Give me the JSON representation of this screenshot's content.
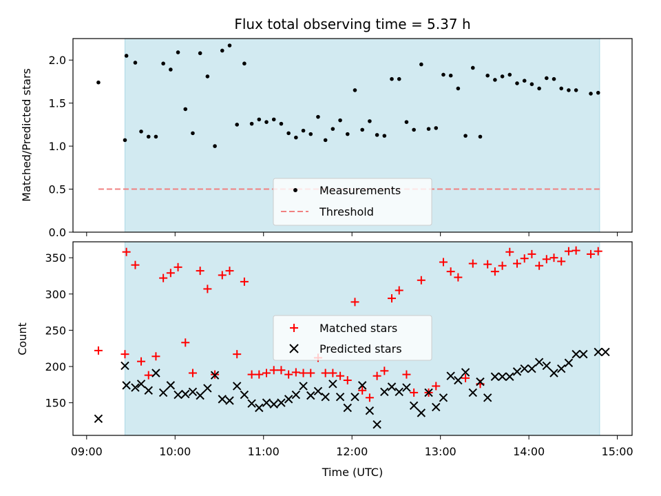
{
  "chart_data": [
    {
      "type": "scatter",
      "title": "Flux total observing time = 5.37 h",
      "ylabel": "Matched/Predicted stars",
      "xlabel": "",
      "ylim": [
        0,
        2.25
      ],
      "yticks": [
        0.0,
        0.5,
        1.0,
        1.5,
        2.0
      ],
      "ytick_labels": [
        "0.0",
        "0.5",
        "1.0",
        "1.5",
        "2.0"
      ],
      "shaded_span": {
        "from": "09:26",
        "to": "14:48",
        "color": "#add8e6"
      },
      "legend": {
        "placement": "lower center",
        "entries": [
          "Measurements",
          "Threshold"
        ]
      },
      "series": [
        {
          "name": "Measurements",
          "color": "#000000",
          "marker": "dot",
          "points": [
            [
              "09:08",
              1.74
            ],
            [
              "09:26",
              1.07
            ],
            [
              "09:27",
              2.05
            ],
            [
              "09:33",
              1.97
            ],
            [
              "09:37",
              1.17
            ],
            [
              "09:42",
              1.11
            ],
            [
              "09:47",
              1.11
            ],
            [
              "09:52",
              1.96
            ],
            [
              "09:57",
              1.89
            ],
            [
              "10:02",
              2.09
            ],
            [
              "10:07",
              1.43
            ],
            [
              "10:12",
              1.15
            ],
            [
              "10:17",
              2.08
            ],
            [
              "10:22",
              1.81
            ],
            [
              "10:27",
              1.0
            ],
            [
              "10:32",
              2.11
            ],
            [
              "10:37",
              2.17
            ],
            [
              "10:42",
              1.25
            ],
            [
              "10:47",
              1.96
            ],
            [
              "10:52",
              1.26
            ],
            [
              "10:57",
              1.31
            ],
            [
              "11:02",
              1.28
            ],
            [
              "11:07",
              1.31
            ],
            [
              "11:12",
              1.26
            ],
            [
              "11:17",
              1.15
            ],
            [
              "11:22",
              1.1
            ],
            [
              "11:27",
              1.18
            ],
            [
              "11:32",
              1.14
            ],
            [
              "11:37",
              1.34
            ],
            [
              "11:42",
              1.07
            ],
            [
              "11:47",
              1.2
            ],
            [
              "11:52",
              1.3
            ],
            [
              "11:57",
              1.14
            ],
            [
              "12:02",
              1.65
            ],
            [
              "12:07",
              1.19
            ],
            [
              "12:12",
              1.29
            ],
            [
              "12:17",
              1.13
            ],
            [
              "12:22",
              1.12
            ],
            [
              "12:27",
              1.78
            ],
            [
              "12:32",
              1.78
            ],
            [
              "12:37",
              1.28
            ],
            [
              "12:42",
              1.19
            ],
            [
              "12:47",
              1.95
            ],
            [
              "12:52",
              1.2
            ],
            [
              "12:57",
              1.21
            ],
            [
              "13:02",
              1.83
            ],
            [
              "13:07",
              1.82
            ],
            [
              "13:12",
              1.67
            ],
            [
              "13:17",
              1.12
            ],
            [
              "13:22",
              1.91
            ],
            [
              "13:27",
              1.11
            ],
            [
              "13:32",
              1.82
            ],
            [
              "13:37",
              1.77
            ],
            [
              "13:42",
              1.81
            ],
            [
              "13:47",
              1.83
            ],
            [
              "13:52",
              1.73
            ],
            [
              "13:57",
              1.76
            ],
            [
              "14:02",
              1.72
            ],
            [
              "14:07",
              1.67
            ],
            [
              "14:12",
              1.79
            ],
            [
              "14:17",
              1.78
            ],
            [
              "14:22",
              1.67
            ],
            [
              "14:27",
              1.65
            ],
            [
              "14:32",
              1.65
            ],
            [
              "14:42",
              1.61
            ],
            [
              "14:47",
              1.62
            ]
          ]
        },
        {
          "name": "Threshold",
          "color": "#f08080",
          "style": "dashed",
          "points": [
            [
              "09:08",
              0.5
            ],
            [
              "14:48",
              0.5
            ]
          ]
        }
      ]
    },
    {
      "type": "scatter",
      "title": "",
      "ylabel": "Count",
      "xlabel": "Time (UTC)",
      "ylim": [
        105,
        372
      ],
      "yticks": [
        150,
        200,
        250,
        300,
        350
      ],
      "ytick_labels": [
        "150",
        "200",
        "250",
        "300",
        "350"
      ],
      "xlim": [
        "09:00",
        "15:00"
      ],
      "xtick_labels": [
        "09:00",
        "10:00",
        "11:00",
        "12:00",
        "13:00",
        "14:00",
        "15:00"
      ],
      "shaded_span": {
        "from": "09:26",
        "to": "14:48",
        "color": "#add8e6"
      },
      "legend": {
        "placement": "center",
        "entries": [
          "Matched stars",
          "Predicted stars"
        ]
      },
      "series": [
        {
          "name": "Matched stars",
          "color": "#ff0000",
          "marker": "plus",
          "points": [
            [
              "09:08",
              222
            ],
            [
              "09:26",
              217
            ],
            [
              "09:27",
              358
            ],
            [
              "09:33",
              340
            ],
            [
              "09:37",
              207
            ],
            [
              "09:42",
              188
            ],
            [
              "09:47",
              214
            ],
            [
              "09:52",
              322
            ],
            [
              "09:57",
              329
            ],
            [
              "10:02",
              337
            ],
            [
              "10:07",
              233
            ],
            [
              "10:12",
              191
            ],
            [
              "10:17",
              332
            ],
            [
              "10:22",
              307
            ],
            [
              "10:27",
              189
            ],
            [
              "10:32",
              326
            ],
            [
              "10:37",
              332
            ],
            [
              "10:42",
              217
            ],
            [
              "10:47",
              317
            ],
            [
              "10:52",
              189
            ],
            [
              "10:57",
              189
            ],
            [
              "11:02",
              191
            ],
            [
              "11:07",
              195
            ],
            [
              "11:12",
              195
            ],
            [
              "11:17",
              189
            ],
            [
              "11:22",
              192
            ],
            [
              "11:27",
              191
            ],
            [
              "11:32",
              191
            ],
            [
              "11:37",
              212
            ],
            [
              "11:42",
              191
            ],
            [
              "11:47",
              191
            ],
            [
              "11:52",
              187
            ],
            [
              "11:57",
              181
            ],
            [
              "12:02",
              289
            ],
            [
              "12:07",
              167
            ],
            [
              "12:12",
              157
            ],
            [
              "12:17",
              187
            ],
            [
              "12:22",
              194
            ],
            [
              "12:27",
              294
            ],
            [
              "12:32",
              305
            ],
            [
              "12:37",
              189
            ],
            [
              "12:42",
              164
            ],
            [
              "12:47",
              319
            ],
            [
              "12:52",
              164
            ],
            [
              "12:57",
              173
            ],
            [
              "13:02",
              344
            ],
            [
              "13:07",
              331
            ],
            [
              "13:12",
              323
            ],
            [
              "13:17",
              184
            ],
            [
              "13:22",
              342
            ],
            [
              "13:27",
              176
            ],
            [
              "13:32",
              341
            ],
            [
              "13:37",
              331
            ],
            [
              "13:42",
              339
            ],
            [
              "13:47",
              358
            ],
            [
              "13:52",
              342
            ],
            [
              "13:57",
              349
            ],
            [
              "14:02",
              355
            ],
            [
              "14:07",
              339
            ],
            [
              "14:12",
              348
            ],
            [
              "14:17",
              350
            ],
            [
              "14:22",
              345
            ],
            [
              "14:27",
              359
            ],
            [
              "14:32",
              360
            ],
            [
              "14:42",
              355
            ],
            [
              "14:47",
              359
            ]
          ]
        },
        {
          "name": "Predicted stars",
          "color": "#000000",
          "marker": "x",
          "points": [
            [
              "09:08",
              128
            ],
            [
              "09:26",
              201
            ],
            [
              "09:27",
              174
            ],
            [
              "09:33",
              171
            ],
            [
              "09:37",
              176
            ],
            [
              "09:42",
              167
            ],
            [
              "09:47",
              191
            ],
            [
              "09:52",
              164
            ],
            [
              "09:57",
              174
            ],
            [
              "10:02",
              161
            ],
            [
              "10:07",
              162
            ],
            [
              "10:12",
              165
            ],
            [
              "10:17",
              160
            ],
            [
              "10:22",
              170
            ],
            [
              "10:27",
              188
            ],
            [
              "10:32",
              155
            ],
            [
              "10:37",
              153
            ],
            [
              "10:42",
              173
            ],
            [
              "10:47",
              161
            ],
            [
              "10:52",
              149
            ],
            [
              "10:57",
              143
            ],
            [
              "11:02",
              150
            ],
            [
              "11:07",
              148
            ],
            [
              "11:12",
              150
            ],
            [
              "11:17",
              155
            ],
            [
              "11:22",
              161
            ],
            [
              "11:27",
              173
            ],
            [
              "11:32",
              160
            ],
            [
              "11:37",
              166
            ],
            [
              "11:42",
              158
            ],
            [
              "11:47",
              176
            ],
            [
              "11:52",
              158
            ],
            [
              "11:57",
              143
            ],
            [
              "12:02",
              158
            ],
            [
              "12:07",
              174
            ],
            [
              "12:12",
              139
            ],
            [
              "12:17",
              120
            ],
            [
              "12:22",
              165
            ],
            [
              "12:27",
              172
            ],
            [
              "12:32",
              165
            ],
            [
              "12:37",
              171
            ],
            [
              "12:42",
              146
            ],
            [
              "12:47",
              136
            ],
            [
              "12:52",
              164
            ],
            [
              "12:57",
              144
            ],
            [
              "13:02",
              157
            ],
            [
              "13:07",
              187
            ],
            [
              "13:12",
              181
            ],
            [
              "13:17",
              192
            ],
            [
              "13:22",
              164
            ],
            [
              "13:27",
              179
            ],
            [
              "13:32",
              157
            ],
            [
              "13:37",
              186
            ],
            [
              "13:42",
              186
            ],
            [
              "13:47",
              186
            ],
            [
              "13:52",
              193
            ],
            [
              "13:57",
              197
            ],
            [
              "14:02",
              197
            ],
            [
              "14:07",
              206
            ],
            [
              "14:12",
              201
            ],
            [
              "14:17",
              191
            ],
            [
              "14:22",
              197
            ],
            [
              "14:27",
              205
            ],
            [
              "14:32",
              217
            ],
            [
              "14:37",
              217
            ],
            [
              "14:47",
              220
            ],
            [
              "14:52",
              220
            ]
          ]
        }
      ]
    }
  ]
}
